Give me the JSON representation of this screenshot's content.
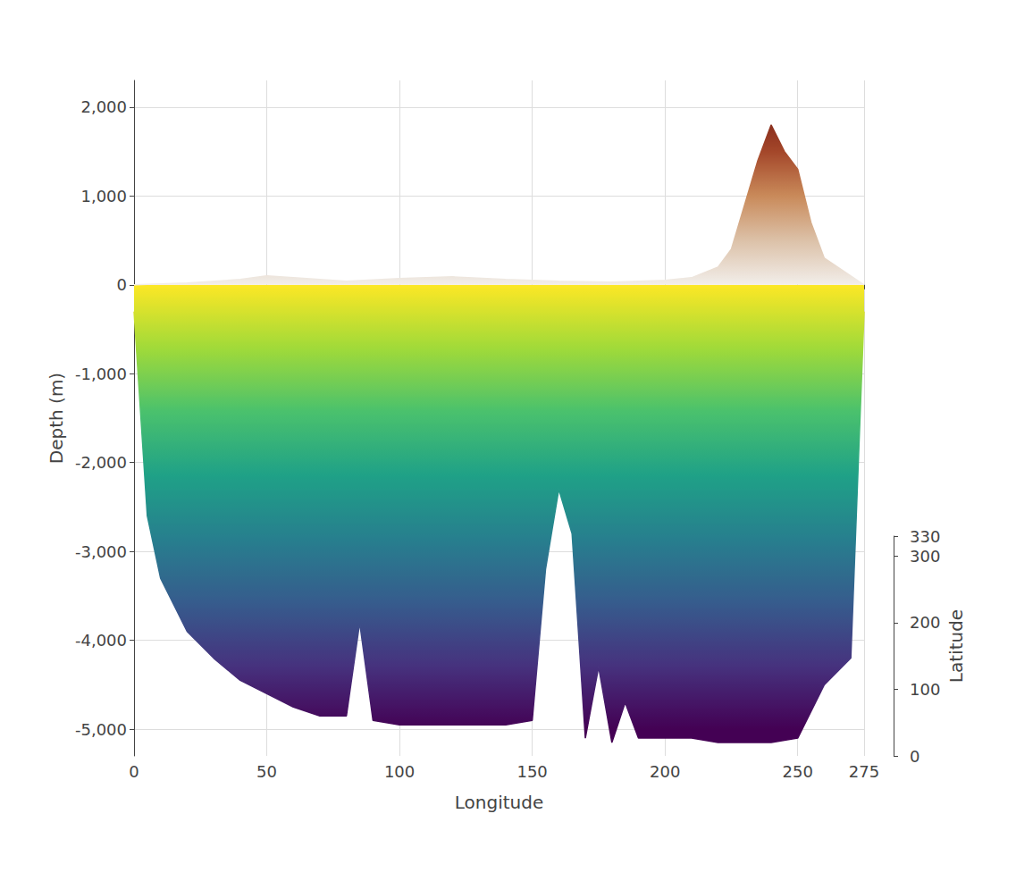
{
  "chart_data": {
    "type": "area",
    "x_label": "Longitude",
    "y_label": "Depth (m)",
    "xlim": [
      0,
      275
    ],
    "xticks": [
      0,
      50,
      100,
      150,
      200,
      250
    ],
    "ylim": [
      -5300,
      2300
    ],
    "yticks": [
      -5000,
      -4000,
      -3000,
      -2000,
      -1000,
      0,
      1000,
      2000
    ],
    "grid": true,
    "series": [
      {
        "type": "area",
        "x": [
          0,
          5,
          10,
          15,
          20,
          30,
          40,
          50,
          60,
          70,
          80,
          85,
          90,
          100,
          110,
          120,
          130,
          140,
          150,
          155,
          160,
          165,
          170,
          175,
          180,
          185,
          190,
          200,
          210,
          220,
          230,
          240,
          250,
          260,
          270,
          275
        ],
        "values": [
          -300,
          -2600,
          -3300,
          -3600,
          -3900,
          -4200,
          -4450,
          -4600,
          -4750,
          -4850,
          -4850,
          -3800,
          -4900,
          -4950,
          -4950,
          -4950,
          -4950,
          -4950,
          -4900,
          -3200,
          -2300,
          -2800,
          -5100,
          -4300,
          -5150,
          -4700,
          -5100,
          -5100,
          -5100,
          -5150,
          -5150,
          -5150,
          -5100,
          -4500,
          -4200,
          -300
        ]
      },
      {
        "type": "area",
        "x": [
          0,
          20,
          40,
          50,
          60,
          80,
          100,
          120,
          140,
          160,
          180,
          200,
          210,
          220,
          225,
          230,
          235,
          240,
          245,
          250,
          255,
          260,
          270,
          275
        ],
        "values": [
          0,
          20,
          60,
          100,
          80,
          40,
          70,
          90,
          60,
          40,
          30,
          50,
          80,
          200,
          400,
          900,
          1400,
          1800,
          1500,
          1300,
          700,
          300,
          100,
          0
        ]
      }
    ],
    "depth_color_range": [
      -5000,
      0
    ],
    "elevation_color_range": [
      0,
      2000
    ],
    "latitude_axis": {
      "label": "Latitude",
      "lim": [
        0,
        330
      ],
      "ticks": [
        0,
        100,
        200,
        300
      ]
    }
  }
}
